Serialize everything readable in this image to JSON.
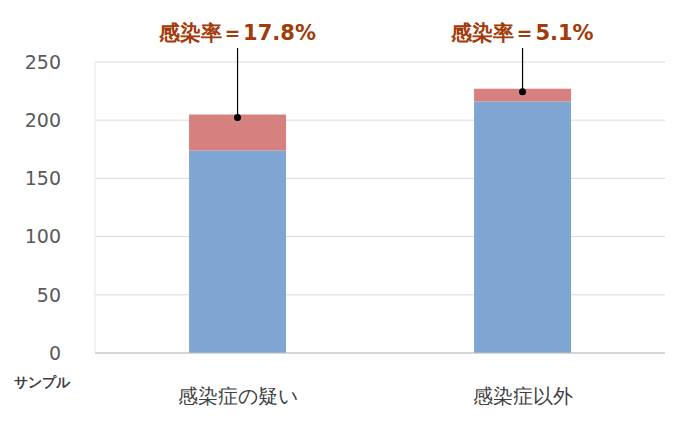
{
  "chart_data": {
    "type": "bar",
    "categories": [
      "感染症の疑い",
      "感染症以外"
    ],
    "series": [
      {
        "color": "#7fa6d2",
        "values": [
          174,
          216
        ]
      },
      {
        "color": "#d68080",
        "values": [
          31,
          11
        ]
      }
    ],
    "stacked": true,
    "ylim": [
      0,
      250
    ],
    "yticks": [
      0,
      50,
      100,
      150,
      200,
      250
    ],
    "grid": true,
    "y_label": "サンプル",
    "annotations": [
      {
        "text": "感染率＝17.8%",
        "category": "感染症の疑い"
      },
      {
        "text": "感染率＝5.1%",
        "category": "感染症以外"
      }
    ]
  }
}
